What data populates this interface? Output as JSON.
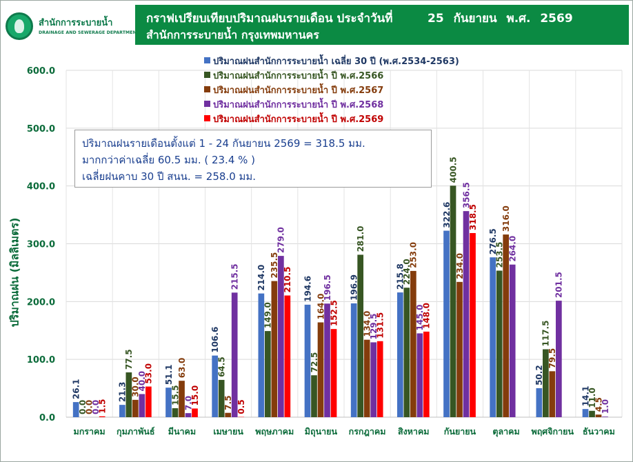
{
  "header": {
    "logo_th": "สำนักการระบายน้ำ",
    "logo_en": "DRAINAGE AND SEWERAGE DEPARTMENT",
    "title_line1": "กราฟเปรียบเทียบปริมาณฝนรายเดือน ประจำวันที่",
    "title_date": "25 กันยายน พ.ศ. 2569",
    "title_line2": "สำนักการระบายน้ำ กรุงเทพมหานคร"
  },
  "note": {
    "line1": "ปริมาณฝนรายเดือนตั้งแต่ 1 - 24 กันยายน 2569 = 318.5 มม.",
    "line2": "มากกว่าค่าเฉลี่ย 60.5  มม. ( 23.4 % )",
    "line3": "เฉลี่ยฝนคาบ 30 ปี สนน. = 258.0 มม."
  },
  "chart_data": {
    "type": "bar",
    "ylabel": "ปริมาณฝน (มิลลิเมตร)",
    "xlabel": "",
    "ylim": [
      0,
      600
    ],
    "yticks": [
      "0.0",
      "100.0",
      "200.0",
      "300.0",
      "400.0",
      "500.0",
      "600.0"
    ],
    "grid": true,
    "legend_position": "top-center",
    "categories": [
      "มกราคม",
      "กุมภาพันธ์",
      "มีนาคม",
      "เมษายน",
      "พฤษภาคม",
      "มิถุนายน",
      "กรกฎาคม",
      "สิงหาคม",
      "กันยายน",
      "ตุลาคม",
      "พฤศจิกายน",
      "ธันวาคม"
    ],
    "series": [
      {
        "name": "ปริมาณฝนสำนักการระบายน้ำ เฉลี่ย 30 ปี (พ.ศ.2534-2563)",
        "color": "#4472c4",
        "label_color": "#1f3864",
        "values": [
          26.1,
          21.3,
          51.1,
          106.6,
          214.0,
          194.6,
          196.9,
          215.8,
          322.6,
          276.5,
          50.2,
          14.1
        ]
      },
      {
        "name": "ปริมาณฝนสำนักการระบายน้ำ ปี พ.ศ.2566",
        "color": "#375623",
        "label_color": "#375623",
        "values": [
          0.0,
          77.5,
          15.5,
          64.5,
          149.0,
          72.5,
          281.0,
          224.0,
          400.5,
          253.5,
          117.5,
          11.0
        ]
      },
      {
        "name": "ปริมาณฝนสำนักการระบายน้ำ ปี พ.ศ.2567",
        "color": "#843c0c",
        "label_color": "#843c0c",
        "values": [
          0.0,
          30.0,
          63.0,
          7.5,
          235.5,
          164.0,
          134.0,
          253.0,
          234.0,
          316.0,
          79.5,
          4.5
        ]
      },
      {
        "name": "ปริมาณฝนสำนักการระบายน้ำ ปี พ.ศ.2568",
        "color": "#7030a0",
        "label_color": "#7030a0",
        "values": [
          0.0,
          40.0,
          7.0,
          215.5,
          279.0,
          196.5,
          129.5,
          145.0,
          356.5,
          264.0,
          201.5,
          1.0
        ]
      },
      {
        "name": "ปริมาณฝนสำนักการระบายน้ำ ปี พ.ศ.2569",
        "color": "#ff0000",
        "label_color": "#c00000",
        "values": [
          1.5,
          53.0,
          15.0,
          0.5,
          210.5,
          152.5,
          131.5,
          148.0,
          318.5,
          null,
          null,
          null
        ]
      }
    ]
  }
}
